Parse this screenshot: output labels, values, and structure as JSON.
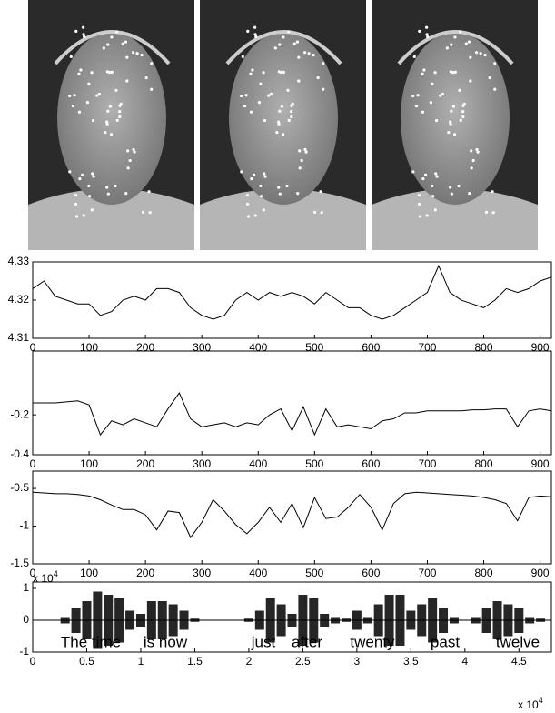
{
  "chart_data": [
    {
      "type": "line",
      "color": "#000000",
      "x": [
        0,
        20,
        40,
        60,
        80,
        100,
        120,
        140,
        160,
        180,
        200,
        220,
        240,
        260,
        280,
        300,
        320,
        340,
        360,
        380,
        400,
        420,
        440,
        460,
        480,
        500,
        520,
        540,
        560,
        580,
        600,
        620,
        640,
        660,
        680,
        700,
        720,
        740,
        760,
        780,
        800,
        820,
        840,
        860,
        880,
        900,
        920
      ],
      "values": [
        4.323,
        4.325,
        4.321,
        4.32,
        4.319,
        4.319,
        4.316,
        4.317,
        4.32,
        4.321,
        4.32,
        4.323,
        4.323,
        4.322,
        4.318,
        4.316,
        4.315,
        4.316,
        4.32,
        4.322,
        4.32,
        4.322,
        4.321,
        4.322,
        4.321,
        4.319,
        4.322,
        4.32,
        4.318,
        4.318,
        4.316,
        4.315,
        4.316,
        4.318,
        4.32,
        4.322,
        4.329,
        4.322,
        4.32,
        4.319,
        4.318,
        4.32,
        4.323,
        4.322,
        4.323,
        4.325,
        4.326
      ],
      "xlim": [
        0,
        920
      ],
      "xticks": [
        0,
        100,
        200,
        300,
        400,
        500,
        600,
        700,
        800,
        900
      ],
      "ylim": [
        4.31,
        4.33
      ],
      "yticks": [
        4.31,
        4.32,
        4.33
      ]
    },
    {
      "type": "line",
      "color": "#000000",
      "x": [
        0,
        20,
        40,
        60,
        80,
        100,
        120,
        140,
        160,
        180,
        200,
        220,
        240,
        260,
        280,
        300,
        320,
        340,
        360,
        380,
        400,
        420,
        440,
        460,
        480,
        500,
        520,
        540,
        560,
        580,
        600,
        620,
        640,
        660,
        680,
        700,
        720,
        740,
        760,
        780,
        800,
        820,
        840,
        860,
        880,
        900,
        920
      ],
      "values": [
        -0.14,
        -0.14,
        -0.14,
        -0.135,
        -0.13,
        -0.15,
        -0.3,
        -0.23,
        -0.25,
        -0.22,
        -0.24,
        -0.26,
        -0.17,
        -0.09,
        -0.22,
        -0.26,
        -0.25,
        -0.24,
        -0.26,
        -0.24,
        -0.25,
        -0.2,
        -0.17,
        -0.28,
        -0.16,
        -0.3,
        -0.17,
        -0.26,
        -0.25,
        -0.26,
        -0.27,
        -0.23,
        -0.22,
        -0.19,
        -0.19,
        -0.18,
        -0.18,
        -0.18,
        -0.18,
        -0.175,
        -0.175,
        -0.17,
        -0.17,
        -0.26,
        -0.18,
        -0.17,
        -0.18
      ],
      "xlim": [
        0,
        920
      ],
      "xticks": [
        0,
        100,
        200,
        300,
        400,
        500,
        600,
        700,
        800,
        900
      ],
      "ylim": [
        -0.4,
        0.12
      ],
      "yticks": [
        -0.4,
        -0.2
      ]
    },
    {
      "type": "line",
      "color": "#000000",
      "x": [
        0,
        20,
        40,
        60,
        80,
        100,
        120,
        140,
        160,
        180,
        200,
        220,
        240,
        260,
        280,
        300,
        320,
        340,
        360,
        380,
        400,
        420,
        440,
        460,
        480,
        500,
        520,
        540,
        560,
        580,
        600,
        620,
        640,
        660,
        680,
        700,
        720,
        740,
        760,
        780,
        800,
        820,
        840,
        860,
        880,
        900,
        920
      ],
      "values": [
        -0.55,
        -0.56,
        -0.57,
        -0.57,
        -0.58,
        -0.6,
        -0.65,
        -0.72,
        -0.78,
        -0.78,
        -0.85,
        -1.05,
        -0.8,
        -0.82,
        -1.15,
        -0.95,
        -0.65,
        -0.8,
        -0.98,
        -1.1,
        -0.95,
        -0.75,
        -0.95,
        -0.7,
        -1.02,
        -0.62,
        -0.9,
        -0.88,
        -0.75,
        -0.58,
        -0.75,
        -1.05,
        -0.7,
        -0.57,
        -0.55,
        -0.56,
        -0.57,
        -0.58,
        -0.59,
        -0.6,
        -0.62,
        -0.65,
        -0.7,
        -0.93,
        -0.62,
        -0.6,
        -0.61
      ],
      "xlim": [
        0,
        920
      ],
      "xticks": [
        0,
        100,
        200,
        300,
        400,
        500,
        600,
        700,
        800,
        900
      ],
      "ylim": [
        -1.5,
        -0.27
      ],
      "yticks": [
        -1.5,
        -1,
        -0.5
      ]
    },
    {
      "type": "envelope",
      "color": "#000000",
      "x": [
        0,
        1000,
        2000,
        3000,
        4000,
        5000,
        6000,
        7000,
        8000,
        9000,
        10000,
        11000,
        12000,
        13000,
        14000,
        15000,
        16000,
        17000,
        18000,
        19000,
        20000,
        21000,
        22000,
        23000,
        24000,
        25000,
        26000,
        27000,
        28000,
        29000,
        30000,
        31000,
        32000,
        33000,
        34000,
        35000,
        36000,
        37000,
        38000,
        39000,
        40000,
        41000,
        42000,
        43000,
        44000,
        45000,
        46000,
        47000,
        48000
      ],
      "values": [
        0,
        0,
        0,
        0.1,
        0.4,
        0.6,
        0.9,
        0.8,
        0.7,
        0.3,
        0.2,
        0.6,
        0.6,
        0.5,
        0.3,
        0.05,
        0,
        0,
        0,
        0,
        0.05,
        0.3,
        0.7,
        0.5,
        0.2,
        0.8,
        0.7,
        0.2,
        0.1,
        0.05,
        0.3,
        0.1,
        0.5,
        0.8,
        0.8,
        0.3,
        0.5,
        0.7,
        0.4,
        0.1,
        0,
        0.1,
        0.4,
        0.6,
        0.5,
        0.4,
        0.1,
        0.05,
        0
      ],
      "xlim": [
        0,
        48000
      ],
      "xticks": [
        0,
        {
          "value": 5000,
          "label": "0.5"
        },
        {
          "value": 10000,
          "label": "1"
        },
        {
          "value": 15000,
          "label": "1.5"
        },
        {
          "value": 20000,
          "label": "2"
        },
        {
          "value": 25000,
          "label": "2.5"
        },
        {
          "value": 30000,
          "label": "3"
        },
        {
          "value": 35000,
          "label": "3.5"
        },
        {
          "value": 40000,
          "label": "4"
        },
        {
          "value": 45000,
          "label": "4.5"
        }
      ],
      "ylim": [
        -1,
        1.2
      ],
      "yticks": [
        -1,
        0,
        1
      ],
      "y_scale_label": "x 10",
      "y_scale_exponent": "4",
      "x_scale_label": "x 10",
      "x_scale_exponent": "4",
      "words": [
        "The time",
        "is now",
        "just",
        "after",
        "twenty",
        "past",
        "twelve"
      ]
    }
  ]
}
